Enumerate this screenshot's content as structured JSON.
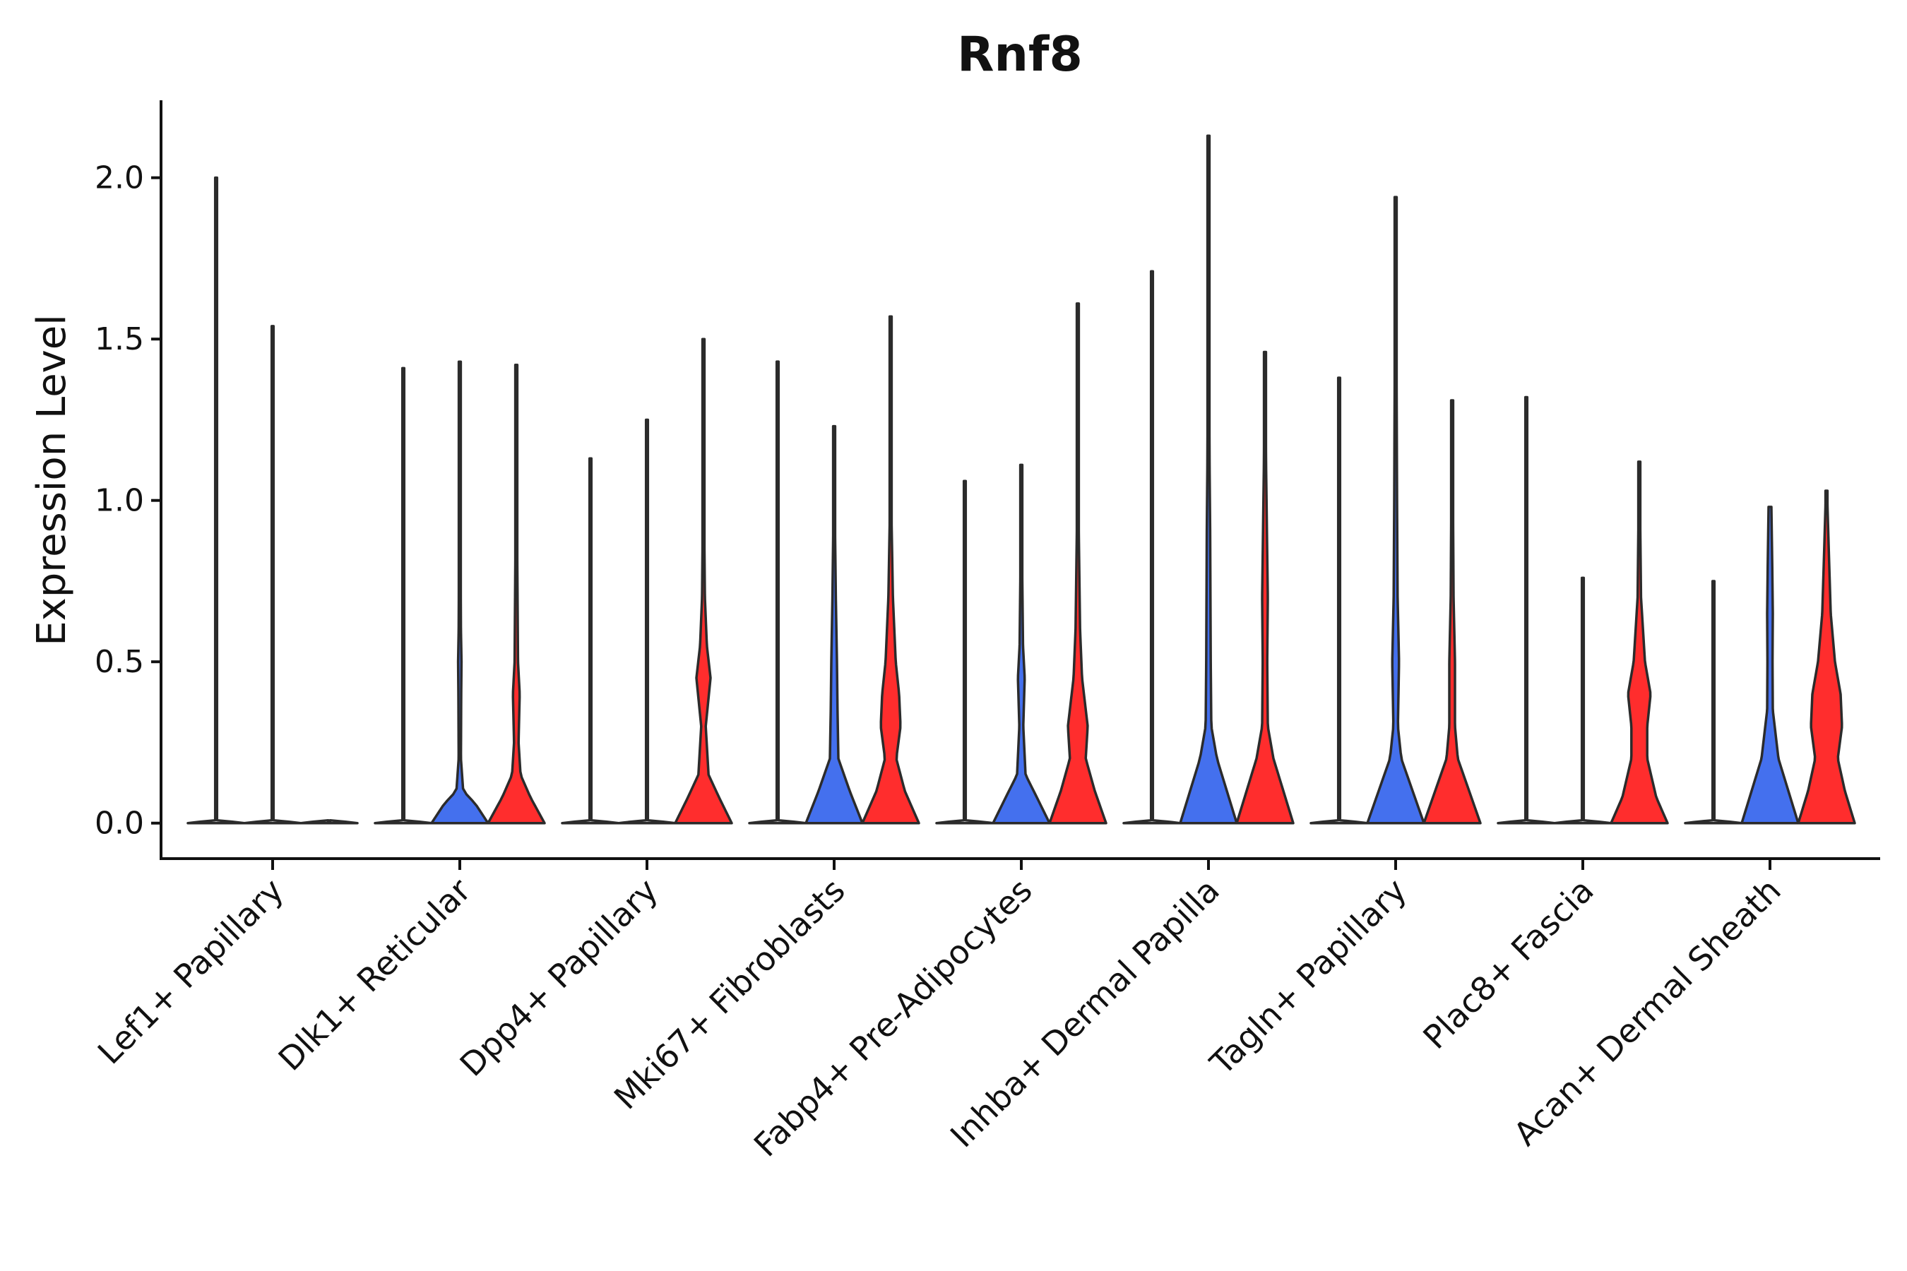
{
  "chart_data": {
    "type": "violin",
    "title": "Rnf8",
    "xlabel": "",
    "ylabel": "Expression Level",
    "ylim": [
      -0.11,
      2.24
    ],
    "yticks": [
      0.0,
      0.5,
      1.0,
      1.5,
      2.0
    ],
    "ytick_labels": [
      "0.0",
      "0.5",
      "1.0",
      "1.5",
      "2.0"
    ],
    "grid": false,
    "legend": "none",
    "colors": {
      "group_a": "#4470ee",
      "group_b": "#ff2d2d",
      "none": "#ffffff",
      "outline": "#2b2b2b"
    },
    "categories": [
      "Lef1+ Papillary",
      "Dlk1+ Reticular",
      "Dpp4+ Papillary",
      "Mki67+ Fibroblasts",
      "Fabp4+ Pre-Adipocytes",
      "Inhba+ Dermal Papilla",
      "Tagln+ Papillary",
      "Plac8+ Fascia",
      "Acan+ Dermal Sheath"
    ],
    "violins": [
      [
        {
          "fill": "none",
          "max": 2.0,
          "profile": []
        },
        {
          "fill": "none",
          "max": 1.54,
          "profile": []
        },
        {
          "fill": "none",
          "max": 0.0,
          "profile": []
        }
      ],
      [
        {
          "fill": "none",
          "max": 1.41,
          "profile": []
        },
        {
          "fill": "group_a",
          "max": 1.43,
          "profile": [
            [
              0,
              1
            ],
            [
              0.06,
              0.55
            ],
            [
              0.1,
              0.12
            ],
            [
              0.2,
              0.04
            ],
            [
              0.4,
              0.05
            ],
            [
              0.5,
              0.06
            ],
            [
              0.6,
              0.04
            ],
            [
              1.0,
              0.02
            ]
          ]
        },
        {
          "fill": "group_b",
          "max": 1.42,
          "profile": [
            [
              0,
              1
            ],
            [
              0.08,
              0.5
            ],
            [
              0.15,
              0.15
            ],
            [
              0.25,
              0.08
            ],
            [
              0.4,
              0.12
            ],
            [
              0.5,
              0.06
            ],
            [
              1.0,
              0.02
            ]
          ]
        }
      ],
      [
        {
          "fill": "none",
          "max": 1.13,
          "profile": []
        },
        {
          "fill": "none",
          "max": 1.25,
          "profile": []
        },
        {
          "fill": "group_b",
          "max": 1.5,
          "profile": [
            [
              0,
              1
            ],
            [
              0.08,
              0.55
            ],
            [
              0.15,
              0.18
            ],
            [
              0.3,
              0.08
            ],
            [
              0.45,
              0.25
            ],
            [
              0.55,
              0.12
            ],
            [
              0.7,
              0.05
            ],
            [
              1.0,
              0.02
            ]
          ]
        }
      ],
      [
        {
          "fill": "none",
          "max": 1.43,
          "profile": []
        },
        {
          "fill": "group_a",
          "max": 1.23,
          "profile": [
            [
              0,
              1
            ],
            [
              0.1,
              0.55
            ],
            [
              0.2,
              0.15
            ],
            [
              0.35,
              0.12
            ],
            [
              0.5,
              0.1
            ],
            [
              0.7,
              0.06
            ],
            [
              1.0,
              0.02
            ]
          ]
        },
        {
          "fill": "group_b",
          "max": 1.57,
          "profile": [
            [
              0,
              1
            ],
            [
              0.1,
              0.5
            ],
            [
              0.2,
              0.2
            ],
            [
              0.3,
              0.35
            ],
            [
              0.4,
              0.3
            ],
            [
              0.5,
              0.18
            ],
            [
              0.7,
              0.08
            ],
            [
              1.0,
              0.02
            ]
          ]
        }
      ],
      [
        {
          "fill": "none",
          "max": 1.06,
          "profile": []
        },
        {
          "fill": "group_a",
          "max": 1.11,
          "profile": [
            [
              0,
              1
            ],
            [
              0.08,
              0.55
            ],
            [
              0.15,
              0.15
            ],
            [
              0.3,
              0.07
            ],
            [
              0.45,
              0.12
            ],
            [
              0.55,
              0.06
            ],
            [
              0.8,
              0.03
            ],
            [
              1.0,
              0.02
            ]
          ]
        },
        {
          "fill": "group_b",
          "max": 1.61,
          "profile": [
            [
              0,
              1
            ],
            [
              0.1,
              0.6
            ],
            [
              0.2,
              0.28
            ],
            [
              0.3,
              0.35
            ],
            [
              0.45,
              0.15
            ],
            [
              0.6,
              0.08
            ],
            [
              1.0,
              0.02
            ]
          ]
        }
      ],
      [
        {
          "fill": "none",
          "max": 1.71,
          "profile": []
        },
        {
          "fill": "group_a",
          "max": 2.13,
          "profile": [
            [
              0,
              1
            ],
            [
              0.1,
              0.65
            ],
            [
              0.2,
              0.3
            ],
            [
              0.3,
              0.1
            ],
            [
              0.5,
              0.08
            ],
            [
              0.7,
              0.07
            ],
            [
              0.9,
              0.06
            ],
            [
              1.1,
              0.04
            ],
            [
              1.3,
              0.03
            ],
            [
              2.13,
              0.01
            ]
          ]
        },
        {
          "fill": "group_b",
          "max": 1.46,
          "profile": [
            [
              0,
              1
            ],
            [
              0.1,
              0.65
            ],
            [
              0.2,
              0.3
            ],
            [
              0.3,
              0.1
            ],
            [
              0.5,
              0.08
            ],
            [
              0.7,
              0.1
            ],
            [
              0.9,
              0.07
            ],
            [
              1.1,
              0.04
            ],
            [
              1.46,
              0.01
            ]
          ]
        }
      ],
      [
        {
          "fill": "none",
          "max": 1.38,
          "profile": []
        },
        {
          "fill": "group_a",
          "max": 1.94,
          "profile": [
            [
              0,
              1
            ],
            [
              0.1,
              0.6
            ],
            [
              0.2,
              0.2
            ],
            [
              0.3,
              0.08
            ],
            [
              0.5,
              0.12
            ],
            [
              0.7,
              0.07
            ],
            [
              1.0,
              0.05
            ],
            [
              1.94,
              0.01
            ]
          ]
        },
        {
          "fill": "group_b",
          "max": 1.31,
          "profile": [
            [
              0,
              1
            ],
            [
              0.1,
              0.6
            ],
            [
              0.2,
              0.2
            ],
            [
              0.3,
              0.1
            ],
            [
              0.5,
              0.1
            ],
            [
              0.7,
              0.05
            ],
            [
              1.31,
              0.01
            ]
          ]
        }
      ],
      [
        {
          "fill": "none",
          "max": 1.32,
          "profile": []
        },
        {
          "fill": "none",
          "max": 0.76,
          "profile": []
        },
        {
          "fill": "group_b",
          "max": 1.12,
          "profile": [
            [
              0,
              1
            ],
            [
              0.08,
              0.6
            ],
            [
              0.2,
              0.28
            ],
            [
              0.3,
              0.28
            ],
            [
              0.4,
              0.4
            ],
            [
              0.5,
              0.2
            ],
            [
              0.7,
              0.06
            ],
            [
              1.12,
              0.01
            ]
          ]
        }
      ],
      [
        {
          "fill": "none",
          "max": 0.75,
          "profile": []
        },
        {
          "fill": "group_a",
          "max": 0.98,
          "profile": [
            [
              0,
              1
            ],
            [
              0.1,
              0.65
            ],
            [
              0.2,
              0.3
            ],
            [
              0.35,
              0.1
            ],
            [
              0.5,
              0.09
            ],
            [
              0.65,
              0.1
            ],
            [
              0.8,
              0.08
            ],
            [
              0.98,
              0.05
            ]
          ]
        },
        {
          "fill": "group_b",
          "max": 1.03,
          "profile": [
            [
              0,
              1
            ],
            [
              0.1,
              0.65
            ],
            [
              0.2,
              0.4
            ],
            [
              0.3,
              0.55
            ],
            [
              0.4,
              0.5
            ],
            [
              0.5,
              0.3
            ],
            [
              0.65,
              0.15
            ],
            [
              0.85,
              0.08
            ],
            [
              1.03,
              0.02
            ]
          ]
        }
      ]
    ]
  }
}
